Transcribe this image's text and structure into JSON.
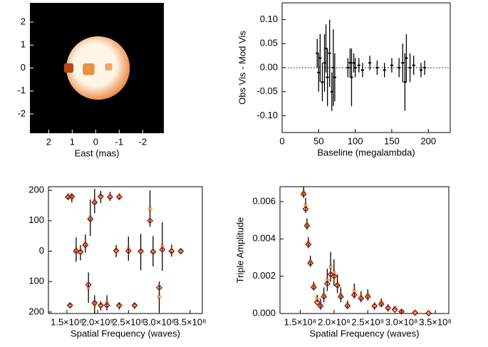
{
  "chart_data": [
    {
      "type": "image",
      "xlabel": "East (mas)",
      "xlim": [
        2.8,
        -2.9
      ],
      "ylim": [
        -2.84,
        2.84
      ],
      "xticks": [
        2,
        1,
        0,
        -1,
        -2
      ],
      "yticks": [
        2,
        1,
        0,
        -1,
        -2
      ],
      "background": "#000000",
      "disk": {
        "x": -0.1,
        "y": 0,
        "radius": 1.35,
        "color_center": "#fff6e8",
        "color_edge": "#e8782a"
      },
      "spots": [
        {
          "x": 0.3,
          "y": -0.05,
          "size": 0.25,
          "color": "#e8913f"
        },
        {
          "x": -0.55,
          "y": 0.05,
          "size": 0.15,
          "color": "#f0a660"
        },
        {
          "x": 1.15,
          "y": 0,
          "size": 0.2,
          "color": "#b2471a"
        }
      ]
    },
    {
      "type": "scatter",
      "xlabel": "Baseline (megalambda)",
      "ylabel": "Obs Vis - Mod Vis",
      "xlim": [
        0,
        230
      ],
      "ylim": [
        -0.135,
        0.135
      ],
      "xticks": [
        0,
        50,
        100,
        150,
        200
      ],
      "yticks": [
        {
          "value": -0.1,
          "label": "-0.10"
        },
        {
          "value": -0.05,
          "label": "-0.05"
        },
        {
          "value": 0,
          "label": "0.00"
        },
        {
          "value": 0.05,
          "label": "0.05"
        },
        {
          "value": 0.1,
          "label": "0.10"
        }
      ],
      "hline": 0,
      "x": [
        48,
        50,
        52,
        55,
        58,
        60,
        62,
        65,
        68,
        70,
        72,
        90,
        93,
        95,
        98,
        100,
        105,
        110,
        120,
        130,
        140,
        150,
        160,
        165,
        168,
        170,
        175,
        180,
        190,
        195
      ],
      "series": [
        {
          "color": "#000000",
          "marker": "dot",
          "error_color": "#000000",
          "values": [
            0.03,
            -0.01,
            0.02,
            -0.03,
            0.01,
            0.04,
            -0.02,
            0.03,
            -0.05,
            0.0,
            -0.02,
            0.0,
            0.01,
            -0.02,
            0.01,
            0.0,
            0.005,
            -0.005,
            0.01,
            0.0,
            -0.005,
            0.005,
            0.0,
            0.01,
            -0.03,
            0.02,
            0.0,
            0.005,
            -0.005,
            0.0
          ],
          "errors": [
            0.03,
            0.04,
            0.05,
            0.04,
            0.06,
            0.05,
            0.06,
            0.07,
            0.04,
            0.08,
            0.05,
            0.02,
            0.03,
            0.06,
            0.02,
            0.02,
            0.015,
            0.015,
            0.015,
            0.015,
            0.015,
            0.015,
            0.02,
            0.04,
            0.06,
            0.05,
            0.03,
            0.02,
            0.015,
            0.015
          ]
        }
      ]
    },
    {
      "type": "scatter",
      "xlabel": "Spatial Frequency (waves)",
      "xlim": [
        120000000,
        370000000
      ],
      "ylim": [
        -205,
        212
      ],
      "xticks": [
        {
          "value": 150000000,
          "label": "1.5×10⁸"
        },
        {
          "value": 200000000,
          "label": "2.0×10⁸"
        },
        {
          "value": 250000000,
          "label": "2.5×10⁸"
        },
        {
          "value": 300000000,
          "label": "3.0×10⁸"
        },
        {
          "value": 350000000,
          "label": "3.5×10⁸"
        }
      ],
      "yticks": [
        {
          "value": -200,
          "label": "200"
        },
        {
          "value": -100,
          "label": "100"
        },
        0,
        100,
        200
      ],
      "x": [
        152000000,
        158000000,
        155000000,
        165000000,
        172000000,
        180000000,
        188000000,
        195000000,
        205000000,
        220000000,
        235000000,
        185000000,
        195000000,
        205000000,
        215000000,
        235000000,
        260000000,
        230000000,
        250000000,
        270000000,
        290000000,
        305000000,
        320000000,
        335000000,
        285000000,
        300000000
      ],
      "series": [
        {
          "color": "#f2a049",
          "marker": "asterisk",
          "error_color": "#000000",
          "values": [
            180,
            175,
            -180,
            5,
            -5,
            25,
            110,
            165,
            178,
            180,
            180,
            -120,
            -175,
            -180,
            -170,
            -180,
            -180,
            0,
            8,
            -3,
            0,
            15,
            2,
            0,
            140,
            -150
          ],
          "errors": [
            10,
            15,
            8,
            40,
            25,
            30,
            60,
            40,
            20,
            15,
            10,
            50,
            30,
            15,
            25,
            12,
            10,
            20,
            40,
            60,
            50,
            80,
            20,
            10,
            60,
            50
          ]
        },
        {
          "color": "#8b1212",
          "marker": "diamond",
          "values": [
            178,
            180,
            -178,
            0,
            -2,
            20,
            105,
            160,
            180,
            178,
            178,
            -110,
            -170,
            -178,
            -178,
            -178,
            -178,
            2,
            0,
            0,
            -2,
            5,
            0,
            0,
            100,
            -120
          ]
        }
      ]
    },
    {
      "type": "scatter",
      "xlabel": "Spatial Frequency (waves)",
      "ylabel": "Triple Amplitude",
      "xlim": [
        120000000,
        370000000
      ],
      "ylim": [
        0,
        0.0068
      ],
      "xticks": [
        {
          "value": 150000000,
          "label": "1.5×10⁸"
        },
        {
          "value": 200000000,
          "label": "2.0×10⁸"
        },
        {
          "value": 250000000,
          "label": "2.5×10⁸"
        },
        {
          "value": 300000000,
          "label": "3.0×10⁸"
        },
        {
          "value": 350000000,
          "label": "3.5×10⁸"
        }
      ],
      "yticks": [
        {
          "value": 0,
          "label": "0.000"
        },
        {
          "value": 0.002,
          "label": "0.002"
        },
        {
          "value": 0.004,
          "label": "0.004"
        },
        {
          "value": 0.006,
          "label": "0.006"
        }
      ],
      "x": [
        155000000,
        158000000,
        160000000,
        162000000,
        165000000,
        170000000,
        175000000,
        180000000,
        185000000,
        190000000,
        195000000,
        200000000,
        205000000,
        210000000,
        220000000,
        230000000,
        240000000,
        250000000,
        260000000,
        270000000,
        280000000,
        290000000,
        300000000,
        320000000,
        340000000
      ],
      "series": [
        {
          "color": "#f2a049",
          "marker": "asterisk",
          "error_color": "#000000",
          "values": [
            0.0065,
            0.0058,
            0.0048,
            0.0038,
            0.0028,
            0.0015,
            0.0008,
            0.0005,
            0.001,
            0.0018,
            0.0025,
            0.0022,
            0.0016,
            0.001,
            0.0005,
            0.0012,
            0.0009,
            0.001,
            0.0004,
            0.0006,
            0.0003,
            0.0003,
            0.0001,
            5e-05,
            2e-05
          ],
          "errors": [
            0.0003,
            0.0004,
            0.0003,
            0.0003,
            0.0003,
            0.0002,
            0.0002,
            0.0003,
            0.0004,
            0.0006,
            0.0008,
            0.0007,
            0.0005,
            0.0004,
            0.0002,
            0.0004,
            0.0003,
            0.0003,
            0.0002,
            0.0002,
            0.0002,
            0.0001,
            0.0001,
            5e-05,
            2e-05
          ]
        },
        {
          "color": "#8b1212",
          "marker": "diamond",
          "values": [
            0.0064,
            0.0056,
            0.0047,
            0.0037,
            0.0027,
            0.0014,
            0.0006,
            0.0004,
            0.0009,
            0.0016,
            0.0021,
            0.002,
            0.0015,
            0.0009,
            0.0004,
            0.001,
            0.0008,
            0.0009,
            0.0004,
            0.0005,
            0.0003,
            0.0002,
            0.0001,
            4e-05,
            2e-05
          ]
        }
      ]
    }
  ]
}
